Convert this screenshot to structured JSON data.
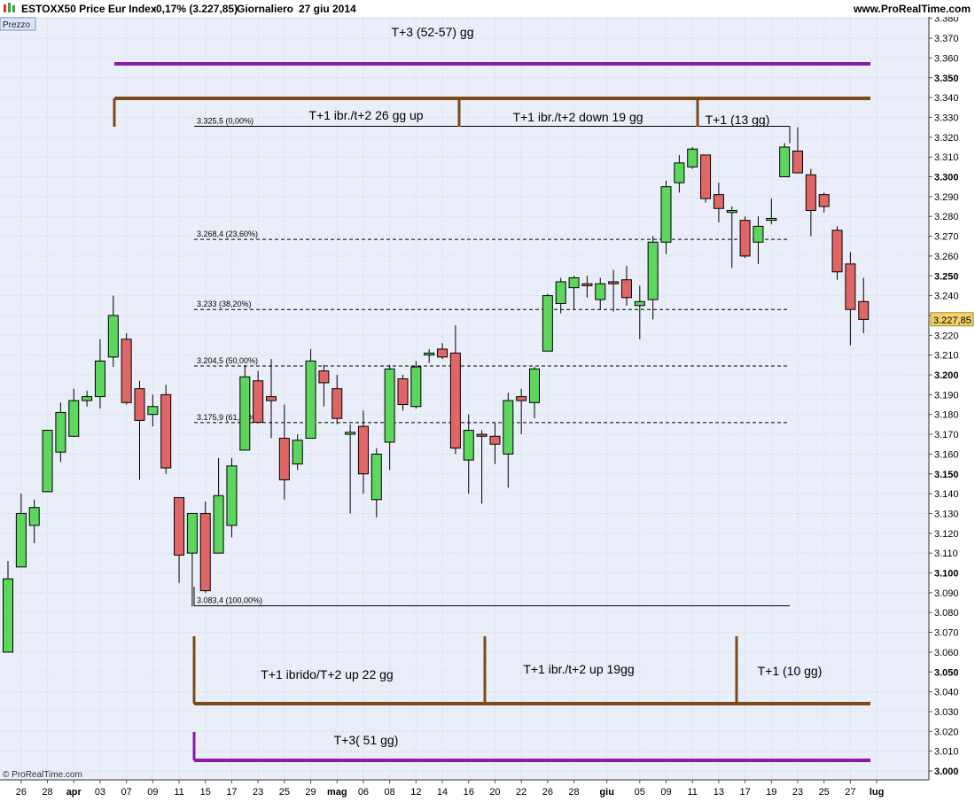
{
  "header": {
    "instrument": "ESTOXX50 Price Eur Index",
    "change": "-0,17% (3.227,85)",
    "period": "Giornaliero",
    "date": "27 giu 2014",
    "site": "www.ProRealTime.com",
    "panel_label": "Prezzo",
    "copyright": "© ProRealTime.com"
  },
  "colors": {
    "background": "#e9eef9",
    "up_candle": "#5cd65c",
    "down_candle": "#e06666",
    "brown": "#7a4a1a",
    "purple": "#8a1aa8",
    "last_price_bg": "#f2d36b"
  },
  "chart_data": {
    "type": "candlestick",
    "title": "ESTOXX50 Price Eur Index",
    "ylim": [
      3000,
      3385
    ],
    "y_ticks": [
      3000,
      3010,
      3020,
      3030,
      3040,
      3050,
      3060,
      3070,
      3080,
      3090,
      3100,
      3110,
      3120,
      3130,
      3140,
      3150,
      3160,
      3170,
      3180,
      3190,
      3200,
      3210,
      3220,
      3230,
      3240,
      3250,
      3260,
      3270,
      3280,
      3290,
      3300,
      3310,
      3320,
      3330,
      3340,
      3350,
      3360,
      3370,
      3380
    ],
    "y_tick_labels": [
      "3.000",
      "3.010",
      "3.020",
      "3.030",
      "3.040",
      "3.050",
      "3.060",
      "3.070",
      "3.080",
      "3.090",
      "3.100",
      "3.110",
      "3.120",
      "3.130",
      "3.140",
      "3.150",
      "3.160",
      "3.170",
      "3.180",
      "3.190",
      "3.200",
      "3.210",
      "3.220",
      "3.230",
      "3.240",
      "3.250",
      "3.260",
      "3.270",
      "3.280",
      "3.290",
      "3.300",
      "3.310",
      "3.320",
      "3.330",
      "3.340",
      "3.350",
      "3.360",
      "3.370",
      "3.380"
    ],
    "y_bold_ticks": [
      3000,
      3050,
      3100,
      3150,
      3200,
      3250,
      3300,
      3350
    ],
    "x_labels": [
      {
        "text": "26",
        "i": 1
      },
      {
        "text": "28",
        "i": 3
      },
      {
        "text": "apr",
        "i": 5,
        "bold": true
      },
      {
        "text": "03",
        "i": 7
      },
      {
        "text": "07",
        "i": 9
      },
      {
        "text": "09",
        "i": 11
      },
      {
        "text": "11",
        "i": 13
      },
      {
        "text": "15",
        "i": 15
      },
      {
        "text": "17",
        "i": 17
      },
      {
        "text": "23",
        "i": 19
      },
      {
        "text": "25",
        "i": 21
      },
      {
        "text": "29",
        "i": 23
      },
      {
        "text": "mag",
        "i": 25,
        "bold": true
      },
      {
        "text": "06",
        "i": 27
      },
      {
        "text": "08",
        "i": 29
      },
      {
        "text": "12",
        "i": 31
      },
      {
        "text": "14",
        "i": 33
      },
      {
        "text": "16",
        "i": 35
      },
      {
        "text": "20",
        "i": 37
      },
      {
        "text": "22",
        "i": 39
      },
      {
        "text": "26",
        "i": 41
      },
      {
        "text": "28",
        "i": 43
      },
      {
        "text": "giu",
        "i": 45.5,
        "bold": true
      },
      {
        "text": "05",
        "i": 48
      },
      {
        "text": "09",
        "i": 50
      },
      {
        "text": "11",
        "i": 52
      },
      {
        "text": "13",
        "i": 54
      },
      {
        "text": "17",
        "i": 56
      },
      {
        "text": "19",
        "i": 58
      },
      {
        "text": "23",
        "i": 60
      },
      {
        "text": "25",
        "i": 62
      },
      {
        "text": "27",
        "i": 64
      },
      {
        "text": "lug",
        "i": 66,
        "bold": true
      }
    ],
    "candles": [
      {
        "o": 3060,
        "h": 3106,
        "l": 3060,
        "c": 3097
      },
      {
        "o": 3103,
        "h": 3140,
        "l": 3103,
        "c": 3130
      },
      {
        "o": 3124,
        "h": 3137,
        "l": 3115,
        "c": 3133
      },
      {
        "o": 3141,
        "h": 3172,
        "l": 3141,
        "c": 3172
      },
      {
        "o": 3161,
        "h": 3186,
        "l": 3156,
        "c": 3181
      },
      {
        "o": 3169,
        "h": 3193,
        "l": 3169,
        "c": 3187
      },
      {
        "o": 3187,
        "h": 3192,
        "l": 3184,
        "c": 3189
      },
      {
        "o": 3189,
        "h": 3218,
        "l": 3183,
        "c": 3207
      },
      {
        "o": 3209,
        "h": 3240,
        "l": 3204,
        "c": 3230
      },
      {
        "o": 3218,
        "h": 3221,
        "l": 3185,
        "c": 3186
      },
      {
        "o": 3193,
        "h": 3197,
        "l": 3147,
        "c": 3177
      },
      {
        "o": 3180,
        "h": 3190,
        "l": 3174,
        "c": 3184
      },
      {
        "o": 3190,
        "h": 3195,
        "l": 3150,
        "c": 3153
      },
      {
        "o": 3138,
        "h": 3138,
        "l": 3095,
        "c": 3109
      },
      {
        "o": 3110,
        "h": 3130,
        "l": 3083,
        "c": 3130
      },
      {
        "o": 3130,
        "h": 3136,
        "l": 3090,
        "c": 3091
      },
      {
        "o": 3110,
        "h": 3158,
        "l": 3110,
        "c": 3139
      },
      {
        "o": 3124,
        "h": 3158,
        "l": 3118,
        "c": 3154
      },
      {
        "o": 3162,
        "h": 3205,
        "l": 3162,
        "c": 3199
      },
      {
        "o": 3197,
        "h": 3202,
        "l": 3178,
        "c": 3176
      },
      {
        "o": 3189,
        "h": 3208,
        "l": 3168,
        "c": 3187
      },
      {
        "o": 3168,
        "h": 3185,
        "l": 3137,
        "c": 3147
      },
      {
        "o": 3155,
        "h": 3170,
        "l": 3152,
        "c": 3167
      },
      {
        "o": 3168,
        "h": 3213,
        "l": 3168,
        "c": 3207
      },
      {
        "o": 3202,
        "h": 3205,
        "l": 3184,
        "c": 3196
      },
      {
        "o": 3193,
        "h": 3200,
        "l": 3175,
        "c": 3178
      },
      {
        "o": 3170,
        "h": 3175,
        "l": 3130,
        "c": 3171
      },
      {
        "o": 3174,
        "h": 3182,
        "l": 3140,
        "c": 3150
      },
      {
        "o": 3137,
        "h": 3163,
        "l": 3128,
        "c": 3160
      },
      {
        "o": 3166,
        "h": 3205,
        "l": 3152,
        "c": 3203
      },
      {
        "o": 3198,
        "h": 3200,
        "l": 3182,
        "c": 3185
      },
      {
        "o": 3184,
        "h": 3207,
        "l": 3183,
        "c": 3204
      },
      {
        "o": 3210,
        "h": 3213,
        "l": 3206,
        "c": 3211
      },
      {
        "o": 3213,
        "h": 3216,
        "l": 3208,
        "c": 3209
      },
      {
        "o": 3211,
        "h": 3225,
        "l": 3160,
        "c": 3163
      },
      {
        "o": 3157,
        "h": 3180,
        "l": 3140,
        "c": 3172
      },
      {
        "o": 3170,
        "h": 3172,
        "l": 3135,
        "c": 3169
      },
      {
        "o": 3169,
        "h": 3176,
        "l": 3155,
        "c": 3165
      },
      {
        "o": 3160,
        "h": 3191,
        "l": 3143,
        "c": 3187
      },
      {
        "o": 3189,
        "h": 3193,
        "l": 3170,
        "c": 3187
      },
      {
        "o": 3186,
        "h": 3204,
        "l": 3178,
        "c": 3203
      },
      {
        "o": 3212,
        "h": 3241,
        "l": 3212,
        "c": 3240
      },
      {
        "o": 3236,
        "h": 3249,
        "l": 3231,
        "c": 3247
      },
      {
        "o": 3244,
        "h": 3250,
        "l": 3233,
        "c": 3249
      },
      {
        "o": 3246,
        "h": 3250,
        "l": 3239,
        "c": 3245
      },
      {
        "o": 3238,
        "h": 3249,
        "l": 3233,
        "c": 3246
      },
      {
        "o": 3247,
        "h": 3253,
        "l": 3232,
        "c": 3246
      },
      {
        "o": 3248,
        "h": 3255,
        "l": 3235,
        "c": 3239
      },
      {
        "o": 3235,
        "h": 3245,
        "l": 3218,
        "c": 3237
      },
      {
        "o": 3238,
        "h": 3270,
        "l": 3228,
        "c": 3267
      },
      {
        "o": 3267,
        "h": 3298,
        "l": 3261,
        "c": 3295
      },
      {
        "o": 3297,
        "h": 3311,
        "l": 3292,
        "c": 3307
      },
      {
        "o": 3305,
        "h": 3315,
        "l": 3304,
        "c": 3314
      },
      {
        "o": 3311,
        "h": 3311,
        "l": 3287,
        "c": 3289
      },
      {
        "o": 3291,
        "h": 3297,
        "l": 3277,
        "c": 3284
      },
      {
        "o": 3282,
        "h": 3285,
        "l": 3254,
        "c": 3283
      },
      {
        "o": 3278,
        "h": 3280,
        "l": 3259,
        "c": 3260
      },
      {
        "o": 3267,
        "h": 3280,
        "l": 3256,
        "c": 3275
      },
      {
        "o": 3278,
        "h": 3289,
        "l": 3276,
        "c": 3279
      },
      {
        "o": 3300,
        "h": 3317,
        "l": 3300,
        "c": 3315
      },
      {
        "o": 3313,
        "h": 3325,
        "l": 3303,
        "c": 3302
      },
      {
        "o": 3301,
        "h": 3304,
        "l": 3270,
        "c": 3283
      },
      {
        "o": 3291,
        "h": 3292,
        "l": 3282,
        "c": 3285
      },
      {
        "o": 3273,
        "h": 3275,
        "l": 3248,
        "c": 3252
      },
      {
        "o": 3256,
        "h": 3262,
        "l": 3215,
        "c": 3233
      },
      {
        "o": 3237,
        "h": 3249,
        "l": 3221,
        "c": 3228
      }
    ],
    "last_price": {
      "value": 3227.85,
      "label": "3.227,85"
    },
    "fibonacci": [
      {
        "price": 3325.5,
        "label": "3.325,5 (0,00%)",
        "style": "solid"
      },
      {
        "price": 3268.4,
        "label": "3.268,4 (23,60%)",
        "style": "dashed"
      },
      {
        "price": 3233,
        "label": "3.233 (38,20%)",
        "style": "dashed"
      },
      {
        "price": 3204.5,
        "label": "3.204,5 (50,00%)",
        "style": "dashed"
      },
      {
        "price": 3175.9,
        "label": "3.175,9 (61,80%)",
        "style": "dashed"
      },
      {
        "price": 3083.4,
        "label": "3.083,4 (100,00%)",
        "style": "solid"
      }
    ],
    "annotations": {
      "t3_top": "T+3  (52-57) gg",
      "top_cycle_1": "T+1 ibr./t+2 26 gg up",
      "top_cycle_2": "T+1 ibr./t+2  down 19 gg",
      "top_cycle_3": "T+1  (13 gg)",
      "bottom_cycle_1": "T+1 ibrido/T+2 up 22 gg",
      "bottom_cycle_2": "T+1 ibr./t+2  up 19gg",
      "bottom_cycle_3": "T+1  (10 gg)",
      "t3_bottom": "T+3( 51 gg)"
    }
  }
}
